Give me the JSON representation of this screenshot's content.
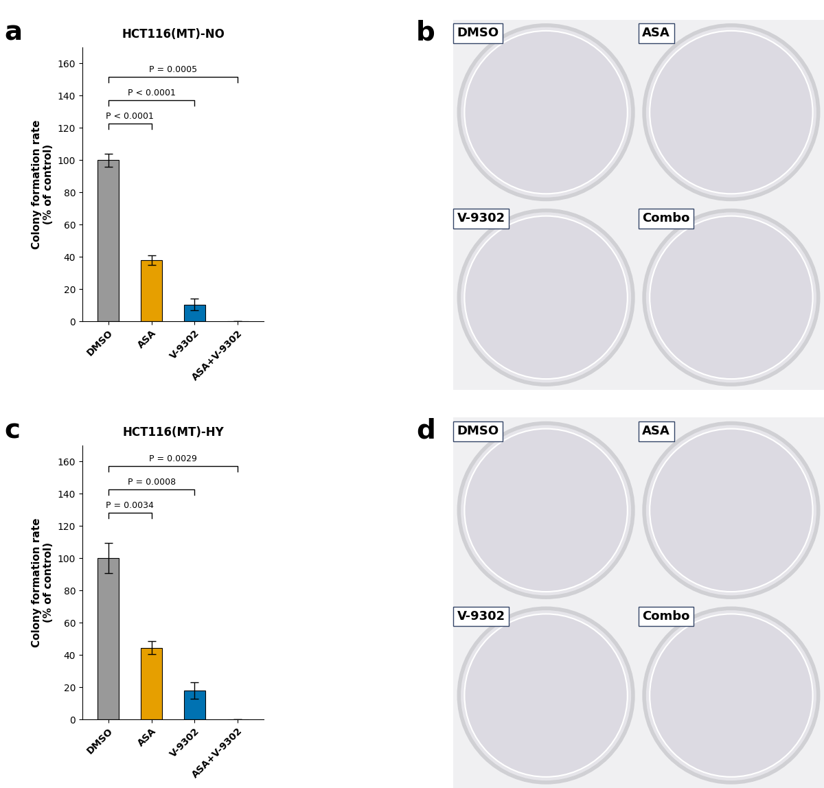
{
  "chart_data": [
    {
      "type": "bar",
      "panel_label": "a",
      "title": "HCT116(MT)-NO",
      "y_label": "Colony formation rate\n(% of control)",
      "categories": [
        "DMSO",
        "ASA",
        "V-9302",
        "ASA+V-9302"
      ],
      "values": [
        100,
        38,
        10.5,
        0
      ],
      "errors": [
        4,
        3,
        3.5,
        0
      ],
      "colors": [
        "#999999",
        "#e69f00",
        "#0072b2",
        "#009e73"
      ],
      "ylim": [
        0,
        170
      ],
      "yticks": [
        0,
        20,
        40,
        60,
        80,
        100,
        120,
        140,
        160
      ],
      "comparisons": [
        {
          "from": "DMSO",
          "to": "ASA",
          "label": "P < 0.0001"
        },
        {
          "from": "DMSO",
          "to": "V-9302",
          "label": "P < 0.0001"
        },
        {
          "from": "DMSO",
          "to": "ASA+V-9302",
          "label": "P = 0.0005"
        }
      ]
    },
    {
      "type": "bar",
      "panel_label": "c",
      "title": "HCT116(MT)-HY",
      "y_label": "Colony formation rate\n(% of control)",
      "categories": [
        "DMSO",
        "ASA",
        "V-9302",
        "ASA+V-9302"
      ],
      "values": [
        100,
        44.5,
        18,
        0
      ],
      "errors": [
        9.5,
        4,
        5,
        0
      ],
      "colors": [
        "#999999",
        "#e69f00",
        "#0072b2",
        "#009e73"
      ],
      "ylim": [
        0,
        170
      ],
      "yticks": [
        0,
        20,
        40,
        60,
        80,
        100,
        120,
        140,
        160
      ],
      "comparisons": [
        {
          "from": "DMSO",
          "to": "ASA",
          "label": "P = 0.0034"
        },
        {
          "from": "DMSO",
          "to": "V-9302",
          "label": "P = 0.0008"
        },
        {
          "from": "DMSO",
          "to": "ASA+V-9302",
          "label": "P = 0.0029"
        }
      ]
    }
  ],
  "plates": [
    {
      "panel_label": "b",
      "labels": [
        "DMSO",
        "ASA",
        "V-9302",
        "Combo"
      ]
    },
    {
      "panel_label": "d",
      "labels": [
        "DMSO",
        "ASA",
        "V-9302",
        "Combo"
      ]
    }
  ]
}
